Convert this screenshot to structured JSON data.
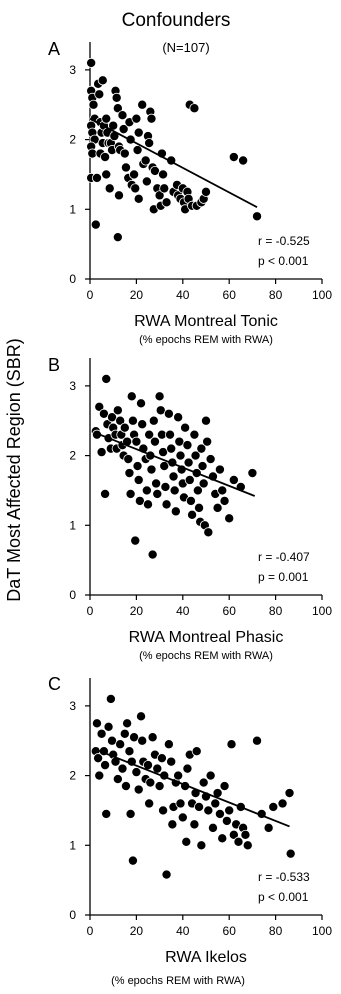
{
  "figure": {
    "header": "Confounders",
    "n_label": "(N=107)",
    "shared_ylabel": "DaT Most Affected Region (SBR)"
  },
  "chart_data": [
    {
      "type": "scatter",
      "panel": "A",
      "xlabel": "RWA Montreal Tonic",
      "xlabel_sub": "(% epochs REM with RWA)",
      "xlim": [
        0,
        100
      ],
      "ylim": [
        0,
        3.4
      ],
      "x_ticks": [
        0,
        20,
        40,
        60,
        80,
        100
      ],
      "y_ticks": [
        0,
        1,
        2,
        3
      ],
      "stat_r": "r = -0.525",
      "stat_p": "p <  0.001",
      "trendline": {
        "x": [
          0,
          72
        ],
        "y": [
          2.3,
          1.03
        ]
      },
      "points": [
        [
          0.5,
          3.1
        ],
        [
          0.5,
          2.7
        ],
        [
          1,
          2.6
        ],
        [
          1.5,
          2.5
        ],
        [
          2,
          2.3
        ],
        [
          0.5,
          2.2
        ],
        [
          1,
          2.1
        ],
        [
          2,
          2.0
        ],
        [
          0.5,
          1.9
        ],
        [
          1,
          1.8
        ],
        [
          0.5,
          1.45
        ],
        [
          3,
          1.45
        ],
        [
          2.5,
          0.78
        ],
        [
          3.5,
          2.8
        ],
        [
          4,
          2.65
        ],
        [
          5.5,
          2.85
        ],
        [
          4.5,
          2.25
        ],
        [
          5,
          2.1
        ],
        [
          5.5,
          1.95
        ],
        [
          4.5,
          1.8
        ],
        [
          6,
          2.2
        ],
        [
          7,
          2.3
        ],
        [
          7.5,
          2.1
        ],
        [
          8,
          1.95
        ],
        [
          6.5,
          1.75
        ],
        [
          7,
          1.5
        ],
        [
          9,
          1.95
        ],
        [
          9.5,
          1.85
        ],
        [
          10,
          2.2
        ],
        [
          10.5,
          2.05
        ],
        [
          8.5,
          1.3
        ],
        [
          11,
          2.7
        ],
        [
          11.5,
          2.6
        ],
        [
          12,
          2.45
        ],
        [
          12.5,
          1.9
        ],
        [
          13,
          1.85
        ],
        [
          12.5,
          1.2
        ],
        [
          12,
          0.6
        ],
        [
          14,
          2.35
        ],
        [
          14.5,
          2.15
        ],
        [
          15,
          1.8
        ],
        [
          15.5,
          1.6
        ],
        [
          17,
          2.25
        ],
        [
          17.5,
          2.0
        ],
        [
          16.5,
          1.45
        ],
        [
          18,
          1.35
        ],
        [
          19,
          1.5
        ],
        [
          19.5,
          1.3
        ],
        [
          20,
          2.3
        ],
        [
          21,
          2.1
        ],
        [
          20.5,
          1.85
        ],
        [
          21,
          1.15
        ],
        [
          22.5,
          2.5
        ],
        [
          23,
          1.65
        ],
        [
          24,
          1.7
        ],
        [
          24.5,
          1.4
        ],
        [
          25,
          2.05
        ],
        [
          25.5,
          1.95
        ],
        [
          26,
          2.4
        ],
        [
          26.5,
          2.3
        ],
        [
          27,
          1.6
        ],
        [
          27.5,
          1.0
        ],
        [
          28,
          1.55
        ],
        [
          29,
          1.3
        ],
        [
          30,
          1.2
        ],
        [
          30.5,
          1.05
        ],
        [
          31,
          1.8
        ],
        [
          31.5,
          1.5
        ],
        [
          32,
          1.3
        ],
        [
          33,
          1.1
        ],
        [
          35,
          1.7
        ],
        [
          36,
          1.25
        ],
        [
          37.5,
          1.35
        ],
        [
          38,
          1.2
        ],
        [
          39,
          1.15
        ],
        [
          40,
          1.3
        ],
        [
          40.5,
          1.1
        ],
        [
          41,
          1.0
        ],
        [
          42,
          1.25
        ],
        [
          42.5,
          1.15
        ],
        [
          43,
          2.5
        ],
        [
          44,
          1.05
        ],
        [
          45,
          2.45
        ],
        [
          46,
          1.05
        ],
        [
          48,
          1.1
        ],
        [
          49,
          1.15
        ],
        [
          50,
          1.25
        ],
        [
          62,
          1.75
        ],
        [
          66,
          1.7
        ],
        [
          72,
          0.9
        ]
      ]
    },
    {
      "type": "scatter",
      "panel": "B",
      "xlabel": "RWA Montreal Phasic",
      "xlabel_sub": "(% epochs REM with RWA)",
      "xlim": [
        0,
        100
      ],
      "ylim": [
        0,
        3.4
      ],
      "x_ticks": [
        0,
        20,
        40,
        60,
        80,
        100
      ],
      "y_ticks": [
        0,
        1,
        2,
        3
      ],
      "stat_r": "r = -0.407",
      "stat_p": "p =  0.001",
      "trendline": {
        "x": [
          2,
          71
        ],
        "y": [
          2.33,
          1.42
        ]
      },
      "points": [
        [
          2.5,
          2.35
        ],
        [
          3,
          2.3
        ],
        [
          4,
          2.7
        ],
        [
          5,
          2.05
        ],
        [
          6,
          2.6
        ],
        [
          6.5,
          1.45
        ],
        [
          7,
          3.1
        ],
        [
          7.5,
          2.45
        ],
        [
          8,
          2.25
        ],
        [
          9,
          2.1
        ],
        [
          9.5,
          2.55
        ],
        [
          10,
          2.4
        ],
        [
          11,
          2.3
        ],
        [
          11.5,
          2.1
        ],
        [
          12,
          2.65
        ],
        [
          13,
          2.5
        ],
        [
          13.5,
          2.3
        ],
        [
          14,
          2.15
        ],
        [
          14.5,
          2.0
        ],
        [
          15,
          2.4
        ],
        [
          16,
          2.2
        ],
        [
          16.5,
          1.95
        ],
        [
          17,
          1.75
        ],
        [
          17.5,
          1.45
        ],
        [
          18,
          2.85
        ],
        [
          18.5,
          2.5
        ],
        [
          19,
          2.3
        ],
        [
          19.5,
          0.78
        ],
        [
          20,
          2.2
        ],
        [
          20.5,
          1.85
        ],
        [
          21,
          1.65
        ],
        [
          21.5,
          1.35
        ],
        [
          22,
          2.75
        ],
        [
          22.5,
          2.45
        ],
        [
          23,
          2.1
        ],
        [
          24,
          1.95
        ],
        [
          24.5,
          1.5
        ],
        [
          25,
          1.3
        ],
        [
          25.5,
          2.3
        ],
        [
          26,
          2.0
        ],
        [
          26.5,
          1.8
        ],
        [
          27,
          0.58
        ],
        [
          27.5,
          2.5
        ],
        [
          28,
          2.2
        ],
        [
          28.5,
          1.6
        ],
        [
          29,
          1.45
        ],
        [
          30,
          2.85
        ],
        [
          30.5,
          2.65
        ],
        [
          31,
          2.3
        ],
        [
          31.5,
          2.05
        ],
        [
          32,
          1.85
        ],
        [
          32.5,
          1.55
        ],
        [
          33,
          1.3
        ],
        [
          34,
          2.6
        ],
        [
          34.5,
          2.3
        ],
        [
          35,
          2.1
        ],
        [
          35.5,
          1.9
        ],
        [
          36,
          1.7
        ],
        [
          36.5,
          1.5
        ],
        [
          37,
          1.2
        ],
        [
          38,
          2.55
        ],
        [
          38.5,
          2.2
        ],
        [
          39,
          2.0
        ],
        [
          39.5,
          1.8
        ],
        [
          40,
          1.6
        ],
        [
          40.5,
          1.4
        ],
        [
          41,
          2.4
        ],
        [
          42,
          2.15
        ],
        [
          42.5,
          1.9
        ],
        [
          43,
          1.65
        ],
        [
          43.5,
          1.35
        ],
        [
          44,
          1.15
        ],
        [
          45,
          2.3
        ],
        [
          45.5,
          2.0
        ],
        [
          46,
          1.75
        ],
        [
          46.5,
          1.5
        ],
        [
          47,
          1.25
        ],
        [
          47.5,
          1.05
        ],
        [
          48,
          2.1
        ],
        [
          48.5,
          1.85
        ],
        [
          49,
          1.6
        ],
        [
          49.5,
          1.0
        ],
        [
          50,
          2.5
        ],
        [
          50.5,
          2.2
        ],
        [
          51,
          0.9
        ],
        [
          52,
          1.95
        ],
        [
          53,
          1.7
        ],
        [
          54,
          1.45
        ],
        [
          55,
          1.25
        ],
        [
          56,
          1.8
        ],
        [
          57,
          1.5
        ],
        [
          58,
          1.35
        ],
        [
          60,
          1.1
        ],
        [
          62,
          1.65
        ],
        [
          65,
          1.55
        ],
        [
          70,
          1.75
        ]
      ]
    },
    {
      "type": "scatter",
      "panel": "C",
      "xlabel": "RWA Ikelos",
      "xlabel_sub": "(% epochs REM with RWA)",
      "xlim": [
        0,
        100
      ],
      "ylim": [
        0,
        3.4
      ],
      "x_ticks": [
        0,
        20,
        40,
        60,
        80,
        100
      ],
      "y_ticks": [
        0,
        1,
        2,
        3
      ],
      "stat_r": "r = -0.533",
      "stat_p": "p <  0.001",
      "trendline": {
        "x": [
          2,
          86
        ],
        "y": [
          2.38,
          1.27
        ]
      },
      "points": [
        [
          2.5,
          2.35
        ],
        [
          3,
          2.75
        ],
        [
          3.5,
          2.25
        ],
        [
          4,
          2.0
        ],
        [
          5,
          2.6
        ],
        [
          6,
          2.35
        ],
        [
          6.5,
          2.15
        ],
        [
          7,
          1.45
        ],
        [
          8,
          2.7
        ],
        [
          9,
          3.1
        ],
        [
          9.5,
          2.5
        ],
        [
          10,
          2.3
        ],
        [
          11,
          2.2
        ],
        [
          12,
          1.95
        ],
        [
          13,
          2.45
        ],
        [
          14,
          2.1
        ],
        [
          15,
          2.6
        ],
        [
          15.5,
          1.85
        ],
        [
          16,
          2.75
        ],
        [
          17,
          2.35
        ],
        [
          17.5,
          1.45
        ],
        [
          18,
          2.2
        ],
        [
          18.5,
          0.78
        ],
        [
          19,
          2.55
        ],
        [
          20,
          2.05
        ],
        [
          21,
          1.8
        ],
        [
          22,
          2.85
        ],
        [
          22.5,
          2.5
        ],
        [
          23,
          2.2
        ],
        [
          24,
          1.95
        ],
        [
          25,
          2.15
        ],
        [
          25.5,
          1.6
        ],
        [
          26,
          1.9
        ],
        [
          27,
          2.55
        ],
        [
          28,
          2.3
        ],
        [
          29,
          2.1
        ],
        [
          30,
          1.85
        ],
        [
          31,
          2.25
        ],
        [
          31.5,
          1.5
        ],
        [
          32,
          2.0
        ],
        [
          33,
          0.58
        ],
        [
          34,
          2.45
        ],
        [
          35,
          2.2
        ],
        [
          35.5,
          1.3
        ],
        [
          36,
          1.55
        ],
        [
          37,
          1.9
        ],
        [
          38,
          2.0
        ],
        [
          39,
          1.6
        ],
        [
          40,
          1.4
        ],
        [
          41,
          1.85
        ],
        [
          41.5,
          1.05
        ],
        [
          42,
          2.1
        ],
        [
          43,
          2.3
        ],
        [
          44,
          1.6
        ],
        [
          45,
          1.3
        ],
        [
          45.5,
          1.75
        ],
        [
          46,
          2.35
        ],
        [
          47,
          1.55
        ],
        [
          48,
          1.0
        ],
        [
          49,
          1.9
        ],
        [
          50,
          1.7
        ],
        [
          51,
          1.5
        ],
        [
          52,
          2.0
        ],
        [
          53,
          1.25
        ],
        [
          54,
          1.6
        ],
        [
          55,
          1.75
        ],
        [
          56,
          1.45
        ],
        [
          57,
          1.1
        ],
        [
          58,
          1.85
        ],
        [
          59,
          1.35
        ],
        [
          60,
          1.5
        ],
        [
          61,
          2.45
        ],
        [
          62,
          1.15
        ],
        [
          63,
          1.3
        ],
        [
          64,
          1.05
        ],
        [
          65,
          1.55
        ],
        [
          66,
          1.25
        ],
        [
          67,
          1.15
        ],
        [
          68,
          1.0
        ],
        [
          72,
          2.5
        ],
        [
          74,
          1.45
        ],
        [
          77,
          1.25
        ],
        [
          79,
          1.55
        ],
        [
          83,
          1.6
        ],
        [
          86,
          1.75
        ],
        [
          86.5,
          0.88
        ]
      ]
    }
  ]
}
